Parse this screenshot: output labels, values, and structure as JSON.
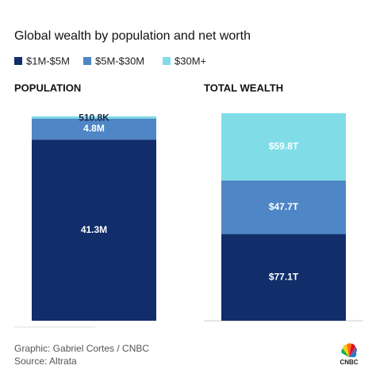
{
  "title": "Global wealth by population and net worth",
  "chart_data": [
    {
      "type": "stacked-bar",
      "title": "POPULATION",
      "categories": [
        null
      ],
      "ylim": [
        0,
        47.3
      ],
      "series": [
        {
          "name": "$1M-$5M",
          "color": "#112e6b",
          "values": [
            41.3
          ],
          "value_labels": [
            "41.3M"
          ]
        },
        {
          "name": "$5M-$30M",
          "color": "#4f86c6",
          "values": [
            4.8
          ],
          "value_labels": [
            "4.8M"
          ]
        },
        {
          "name": "$30M+",
          "color": "#80dde8",
          "values": [
            0.5108
          ],
          "value_labels": [
            "510.8K"
          ]
        }
      ]
    },
    {
      "type": "stacked-bar",
      "title": "TOTAL WEALTH",
      "categories": [
        null
      ],
      "ylim": [
        0,
        184.6
      ],
      "series": [
        {
          "name": "$1M-$5M",
          "color": "#112e6b",
          "values": [
            77.1
          ],
          "value_labels": [
            "$77.1T"
          ]
        },
        {
          "name": "$5M-$30M",
          "color": "#4f86c6",
          "values": [
            47.7
          ],
          "value_labels": [
            "$47.7T"
          ]
        },
        {
          "name": "$30M+",
          "color": "#80dde8",
          "values": [
            59.8
          ],
          "value_labels": [
            "$59.8T"
          ]
        }
      ]
    }
  ],
  "credit": "Graphic: Gabriel Cortes / CNBC",
  "source": "Source: Altrata",
  "logo": "CNBC"
}
